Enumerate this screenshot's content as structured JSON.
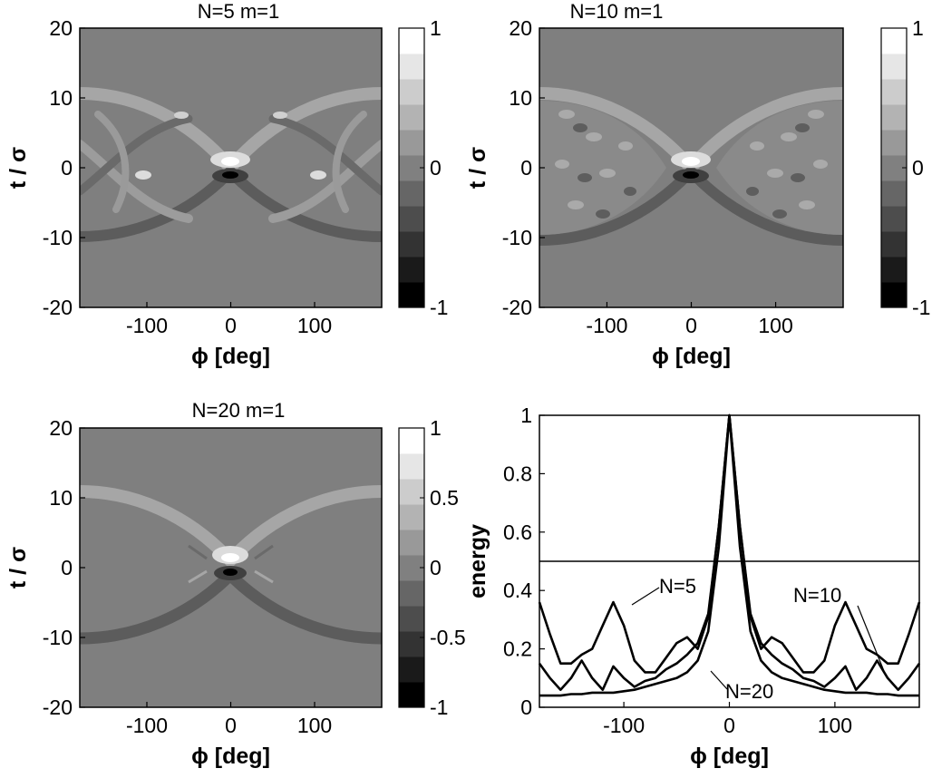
{
  "colors": {
    "background": "#ffffff",
    "field_mid": "#7f7f7f",
    "line": "#000000"
  },
  "chart_data": [
    {
      "type": "heatmap",
      "title": "N=5  m=1",
      "xlabel": "ϕ [deg]",
      "ylabel": "t / σ",
      "xlim": [
        -180,
        180
      ],
      "ylim": [
        -20,
        20
      ],
      "xticks": [
        -100,
        0,
        100
      ],
      "yticks": [
        -20,
        -10,
        0,
        10,
        20
      ],
      "colorbar": {
        "range": [
          -1,
          1
        ],
        "levels": 11,
        "ticks": [
          -1,
          0,
          1
        ]
      },
      "params": {
        "N": 5,
        "m": 1
      }
    },
    {
      "type": "heatmap",
      "title": "N=10  m=1",
      "xlabel": "ϕ [deg]",
      "ylabel": "t / σ",
      "xlim": [
        -180,
        180
      ],
      "ylim": [
        -20,
        20
      ],
      "xticks": [
        -100,
        0,
        100
      ],
      "yticks": [
        -20,
        -10,
        0,
        10,
        20
      ],
      "colorbar": {
        "range": [
          -1,
          1
        ],
        "levels": 11,
        "ticks": [
          -1,
          0,
          1
        ]
      },
      "params": {
        "N": 10,
        "m": 1
      }
    },
    {
      "type": "heatmap",
      "title": "N=20  m=1",
      "xlabel": "ϕ [deg]",
      "ylabel": "t / σ",
      "xlim": [
        -180,
        180
      ],
      "ylim": [
        -20,
        20
      ],
      "xticks": [
        -100,
        0,
        100
      ],
      "yticks": [
        -20,
        -10,
        0,
        10,
        20
      ],
      "colorbar": {
        "range": [
          -1,
          1
        ],
        "levels": 11,
        "ticks": [
          -1,
          -0.5,
          0,
          0.5,
          1
        ]
      },
      "params": {
        "N": 20,
        "m": 1
      }
    },
    {
      "type": "line",
      "title": "",
      "xlabel": "ϕ [deg]",
      "ylabel": "energy",
      "xlim": [
        -180,
        180
      ],
      "ylim": [
        0,
        1
      ],
      "xticks": [
        -100,
        0,
        100
      ],
      "yticks": [
        0,
        0.2,
        0.4,
        0.6,
        0.8,
        1
      ],
      "grid": false,
      "series": [
        {
          "name": "N=5",
          "x": [
            -180,
            -170,
            -160,
            -150,
            -140,
            -130,
            -120,
            -110,
            -100,
            -90,
            -80,
            -70,
            -60,
            -50,
            -40,
            -30,
            -20,
            -10,
            0,
            10,
            20,
            30,
            40,
            50,
            60,
            70,
            80,
            90,
            100,
            110,
            120,
            130,
            140,
            150,
            160,
            170,
            180
          ],
          "y": [
            0.36,
            0.25,
            0.15,
            0.15,
            0.18,
            0.2,
            0.28,
            0.36,
            0.28,
            0.16,
            0.12,
            0.12,
            0.17,
            0.22,
            0.24,
            0.2,
            0.31,
            0.62,
            1.0,
            0.62,
            0.31,
            0.2,
            0.24,
            0.22,
            0.17,
            0.12,
            0.12,
            0.16,
            0.28,
            0.36,
            0.28,
            0.2,
            0.18,
            0.15,
            0.15,
            0.25,
            0.36
          ]
        },
        {
          "name": "N=10",
          "x": [
            -180,
            -170,
            -160,
            -150,
            -140,
            -130,
            -120,
            -110,
            -100,
            -90,
            -80,
            -70,
            -60,
            -50,
            -40,
            -30,
            -20,
            -10,
            0,
            10,
            20,
            30,
            40,
            50,
            60,
            70,
            80,
            90,
            100,
            110,
            120,
            130,
            140,
            150,
            160,
            170,
            180
          ],
          "y": [
            0.15,
            0.1,
            0.06,
            0.1,
            0.16,
            0.1,
            0.06,
            0.14,
            0.1,
            0.07,
            0.09,
            0.1,
            0.13,
            0.15,
            0.18,
            0.22,
            0.32,
            0.62,
            1.0,
            0.62,
            0.32,
            0.22,
            0.18,
            0.15,
            0.13,
            0.1,
            0.09,
            0.07,
            0.1,
            0.14,
            0.06,
            0.1,
            0.16,
            0.1,
            0.06,
            0.1,
            0.15
          ]
        },
        {
          "name": "N=20",
          "x": [
            -180,
            -170,
            -160,
            -150,
            -140,
            -130,
            -120,
            -110,
            -100,
            -90,
            -80,
            -70,
            -60,
            -50,
            -40,
            -30,
            -20,
            -10,
            0,
            10,
            20,
            30,
            40,
            50,
            60,
            70,
            80,
            90,
            100,
            110,
            120,
            130,
            140,
            150,
            160,
            170,
            180
          ],
          "y": [
            0.04,
            0.04,
            0.04,
            0.045,
            0.045,
            0.05,
            0.05,
            0.05,
            0.055,
            0.06,
            0.07,
            0.08,
            0.09,
            0.1,
            0.12,
            0.16,
            0.26,
            0.55,
            1.0,
            0.55,
            0.26,
            0.16,
            0.12,
            0.1,
            0.09,
            0.08,
            0.07,
            0.06,
            0.055,
            0.05,
            0.05,
            0.05,
            0.045,
            0.045,
            0.04,
            0.04,
            0.04
          ]
        },
        {
          "name": "",
          "x": [
            -180,
            180
          ],
          "y": [
            0.5,
            0.5
          ]
        }
      ],
      "annotations": [
        "N=5",
        "N=10",
        "N=20"
      ]
    }
  ]
}
